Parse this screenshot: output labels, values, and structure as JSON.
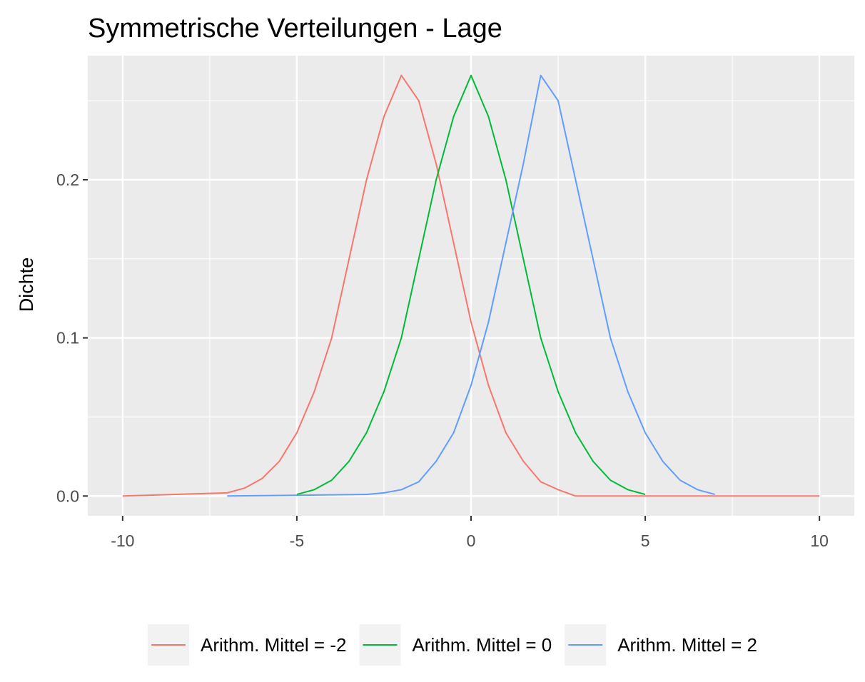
{
  "chart_data": {
    "type": "line",
    "title": "Symmetrische Verteilungen - Lage",
    "xlabel": "",
    "ylabel": "Dichte",
    "xlim": [
      -11,
      11
    ],
    "ylim": [
      -0.0125,
      0.2785
    ],
    "x_ticks": [
      -10,
      -5,
      0,
      5,
      10
    ],
    "x_tick_labels": [
      "-10",
      "-5",
      "0",
      "5",
      "10"
    ],
    "y_ticks": [
      0.0,
      0.1,
      0.2
    ],
    "y_tick_labels": [
      "0.0",
      "0.1",
      "0.2"
    ],
    "grid": true,
    "background": "#ebebeb",
    "legend_position": "bottom",
    "series": [
      {
        "name": "Arithm. Mittel = -2",
        "color": "#f8766d",
        "x": [
          -10,
          -7,
          -6.5,
          -6,
          -5.5,
          -5,
          -4.5,
          -4,
          -3.5,
          -3,
          -2.5,
          -2,
          -1.5,
          -1,
          -0.5,
          0,
          0.5,
          1,
          1.5,
          2,
          2.5,
          3,
          10
        ],
        "y": [
          0.0,
          0.002,
          0.005,
          0.011,
          0.022,
          0.04,
          0.066,
          0.1,
          0.15,
          0.2,
          0.24,
          0.266,
          0.25,
          0.21,
          0.16,
          0.11,
          0.07,
          0.04,
          0.022,
          0.009,
          0.004,
          0.0,
          0.0
        ]
      },
      {
        "name": "Arithm. Mittel = 0",
        "color": "#00ba38",
        "x": [
          -5,
          -4.5,
          -4,
          -3.5,
          -3,
          -2.5,
          -2,
          -1.5,
          -1,
          -0.5,
          0,
          0.5,
          1,
          1.5,
          2,
          2.5,
          3,
          3.5,
          4,
          4.5,
          5
        ],
        "y": [
          0.001,
          0.004,
          0.01,
          0.022,
          0.04,
          0.066,
          0.1,
          0.15,
          0.2,
          0.24,
          0.266,
          0.24,
          0.2,
          0.15,
          0.1,
          0.066,
          0.04,
          0.022,
          0.01,
          0.004,
          0.001
        ]
      },
      {
        "name": "Arithm. Mittel = 2",
        "color": "#619cff",
        "x": [
          -7,
          -3,
          -2.5,
          -2,
          -1.5,
          -1,
          -0.5,
          0,
          0.5,
          1,
          1.5,
          2,
          2.5,
          3,
          3.5,
          4,
          4.5,
          5,
          5.5,
          6,
          6.5,
          7
        ],
        "y": [
          0.0,
          0.001,
          0.002,
          0.004,
          0.009,
          0.022,
          0.04,
          0.07,
          0.11,
          0.16,
          0.21,
          0.266,
          0.25,
          0.2,
          0.15,
          0.1,
          0.066,
          0.04,
          0.022,
          0.01,
          0.004,
          0.001
        ]
      }
    ]
  }
}
